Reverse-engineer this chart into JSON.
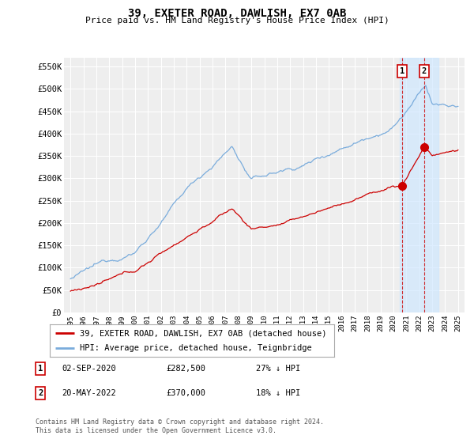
{
  "title": "39, EXETER ROAD, DAWLISH, EX7 0AB",
  "subtitle": "Price paid vs. HM Land Registry's House Price Index (HPI)",
  "ylabel_ticks": [
    "£0",
    "£50K",
    "£100K",
    "£150K",
    "£200K",
    "£250K",
    "£300K",
    "£350K",
    "£400K",
    "£450K",
    "£500K",
    "£550K"
  ],
  "ytick_values": [
    0,
    50000,
    100000,
    150000,
    200000,
    250000,
    300000,
    350000,
    400000,
    450000,
    500000,
    550000
  ],
  "ylim": [
    0,
    570000
  ],
  "legend_label_red": "39, EXETER ROAD, DAWLISH, EX7 0AB (detached house)",
  "legend_label_blue": "HPI: Average price, detached house, Teignbridge",
  "annotation1_label": "1",
  "annotation1_date": "02-SEP-2020",
  "annotation1_price": "£282,500",
  "annotation1_pct": "27% ↓ HPI",
  "annotation2_label": "2",
  "annotation2_date": "20-MAY-2022",
  "annotation2_price": "£370,000",
  "annotation2_pct": "18% ↓ HPI",
  "footer": "Contains HM Land Registry data © Crown copyright and database right 2024.\nThis data is licensed under the Open Government Licence v3.0.",
  "background_color": "#ffffff",
  "plot_background_color": "#eeeeee",
  "grid_color": "#ffffff",
  "red_color": "#cc0000",
  "blue_color": "#7aacdc",
  "sale1_x": 2020.67,
  "sale1_y": 282500,
  "sale2_x": 2022.38,
  "sale2_y": 370000,
  "highlight_xmin": 2020.5,
  "highlight_xmax": 2023.5,
  "xlim_min": 1994.5,
  "xlim_max": 2025.5
}
